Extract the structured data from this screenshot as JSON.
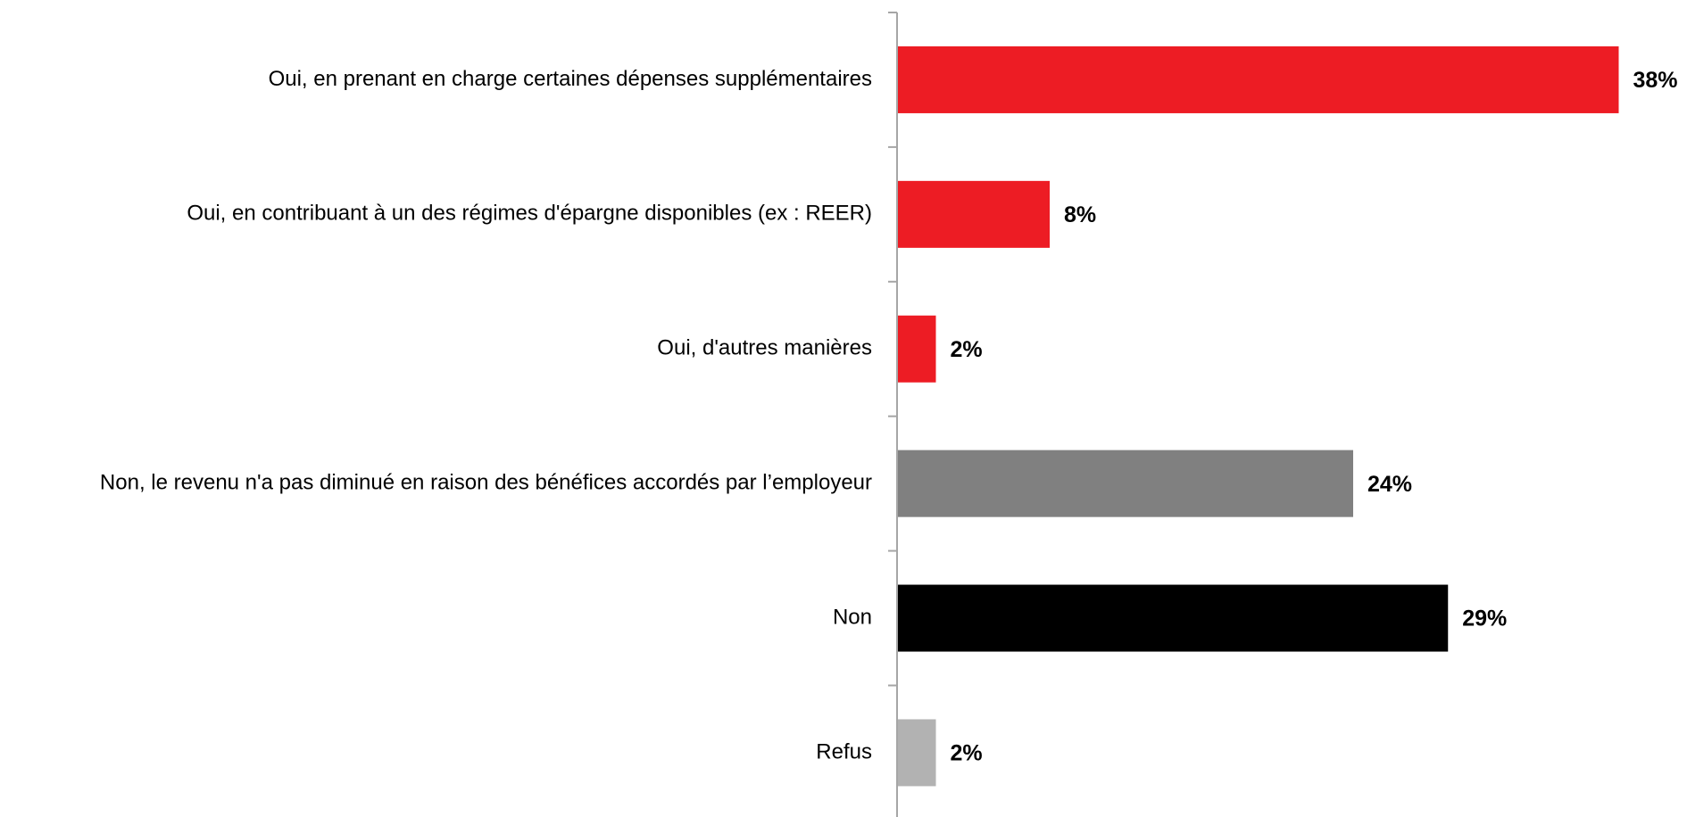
{
  "chart_data": {
    "type": "hbar",
    "categories": [
      "Oui, en prenant en charge certaines dépenses supplémentaires",
      "Oui, en contribuant à un des régimes d'épargne disponibles (ex : REER)",
      "Oui, d'autres manières",
      "Non, le revenu n'a pas diminué en raison des bénéfices accordés par l’employeur",
      "Non",
      "Refus"
    ],
    "values": [
      38,
      8,
      2,
      24,
      29,
      2
    ],
    "value_labels": [
      "38%",
      "8%",
      "2%",
      "24%",
      "29%",
      "2%"
    ],
    "colors": [
      "#ed1c24",
      "#ed1c24",
      "#ed1c24",
      "#808080",
      "#000000",
      "#b2b2b2"
    ]
  }
}
